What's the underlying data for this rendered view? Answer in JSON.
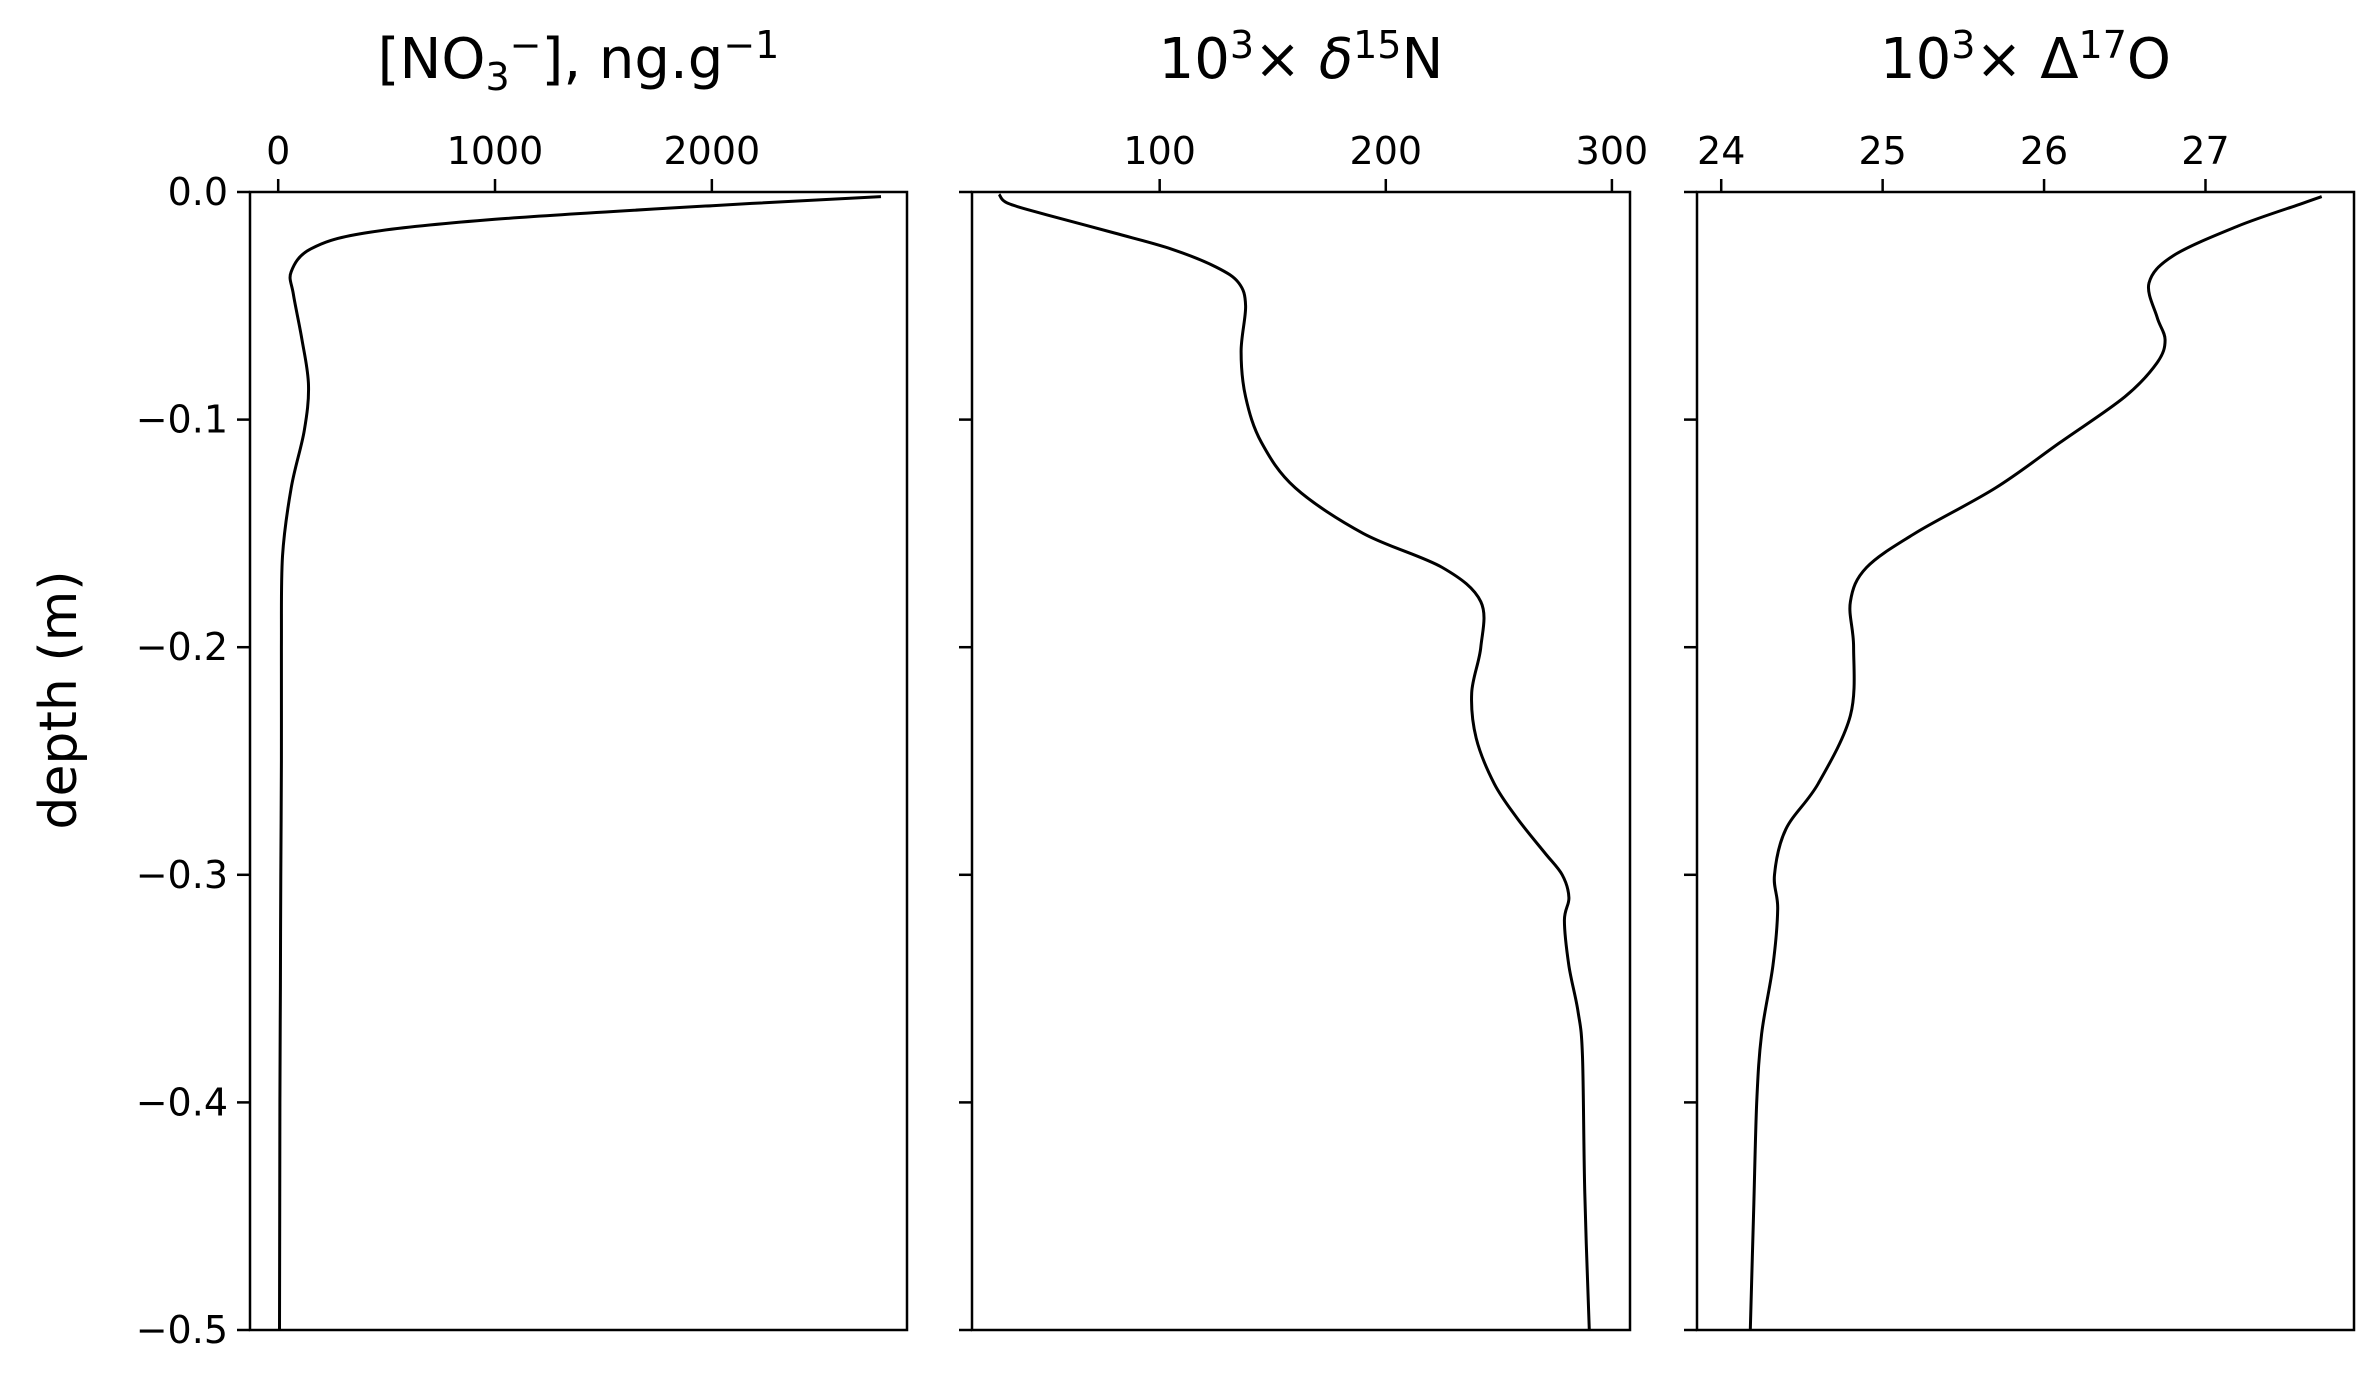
{
  "chart_data": {
    "type": "line",
    "ylabel": "depth (m)",
    "shared_y": {
      "ylim": [
        -0.5,
        0.0
      ],
      "yticks": [
        0.0,
        -0.1,
        -0.2,
        -0.3,
        -0.4,
        -0.5
      ],
      "ytick_labels": [
        "0.0",
        "−0.1",
        "−0.2",
        "−0.3",
        "−0.4",
        "−0.5"
      ]
    },
    "grid": false,
    "legend": "none",
    "line_color": "#000000",
    "panels": [
      {
        "title": {
          "text": "[NO",
          "sub": "3",
          "sup_after_sub": "−",
          "text2": "], ng.g",
          "sup": "−1"
        },
        "xlim": [
          -130,
          2900
        ],
        "xticks": [
          0,
          1000,
          2000
        ],
        "xtick_labels": [
          "0",
          "1000",
          "2000"
        ],
        "x": [
          2780,
          2000,
          1000,
          400,
          150,
          60,
          70,
          110,
          140,
          120,
          60,
          20,
          15,
          15,
          12,
          10,
          8,
          6
        ],
        "y": [
          -0.002,
          -0.006,
          -0.012,
          -0.018,
          -0.025,
          -0.035,
          -0.045,
          -0.065,
          -0.085,
          -0.105,
          -0.13,
          -0.16,
          -0.2,
          -0.25,
          -0.3,
          -0.35,
          -0.4,
          -0.5
        ]
      },
      {
        "title": {
          "text": "10",
          "sup": "3",
          "text2": "× ",
          "italic": "δ",
          "sup2": "15",
          "text3": "N"
        },
        "xlim": [
          17,
          308
        ],
        "xticks": [
          100,
          200,
          300
        ],
        "xtick_labels": [
          "100",
          "200",
          "300"
        ],
        "x": [
          29,
          33,
          50,
          80,
          105,
          125,
          135,
          138,
          136,
          138,
          145,
          160,
          190,
          225,
          242,
          242,
          238,
          240,
          248,
          258,
          270,
          278,
          281,
          279,
          281,
          285,
          287,
          288,
          290
        ],
        "y": [
          -0.001,
          -0.005,
          -0.01,
          -0.018,
          -0.025,
          -0.033,
          -0.04,
          -0.05,
          -0.07,
          -0.09,
          -0.11,
          -0.13,
          -0.15,
          -0.165,
          -0.18,
          -0.2,
          -0.22,
          -0.24,
          -0.26,
          -0.275,
          -0.29,
          -0.3,
          -0.31,
          -0.32,
          -0.34,
          -0.36,
          -0.38,
          -0.44,
          -0.5
        ]
      },
      {
        "title": {
          "text": "10",
          "sup": "3",
          "text2": "× ",
          "text3": "Δ",
          "sup2": "17",
          "text4": "O"
        },
        "xlim": [
          23.85,
          27.92
        ],
        "xticks": [
          24,
          25,
          26,
          27
        ],
        "xtick_labels": [
          "24",
          "25",
          "26",
          "27"
        ],
        "x": [
          27.72,
          27.6,
          27.2,
          26.8,
          26.65,
          26.7,
          26.75,
          26.7,
          26.5,
          26.1,
          25.7,
          25.2,
          24.9,
          24.8,
          24.82,
          24.8,
          24.6,
          24.4,
          24.33,
          24.35,
          24.32,
          24.25,
          24.22,
          24.2,
          24.18
        ],
        "y": [
          -0.002,
          -0.005,
          -0.015,
          -0.028,
          -0.04,
          -0.055,
          -0.065,
          -0.075,
          -0.09,
          -0.11,
          -0.13,
          -0.15,
          -0.165,
          -0.18,
          -0.2,
          -0.23,
          -0.26,
          -0.28,
          -0.3,
          -0.315,
          -0.34,
          -0.37,
          -0.4,
          -0.45,
          -0.5
        ]
      }
    ]
  }
}
